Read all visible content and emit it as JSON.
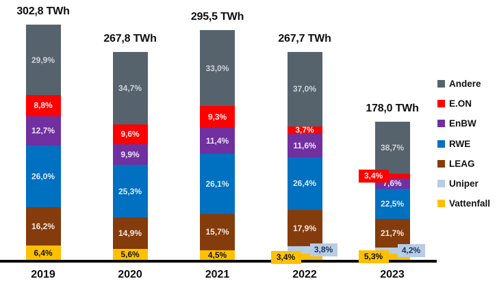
{
  "page": {
    "background": "#FFFFFF",
    "axis_color": "#000000"
  },
  "chart_data": {
    "type": "bar",
    "stacked": true,
    "unit": "TWh",
    "value_label_format": "percent-decimal-comma",
    "grid": false,
    "categories": [
      "2019",
      "2020",
      "2021",
      "2022",
      "2023"
    ],
    "totals": [
      {
        "label": "302,8 TWh",
        "value": 302.8
      },
      {
        "label": "267,8 TWh",
        "value": 267.8
      },
      {
        "label": "295,5 TWh",
        "value": 295.5
      },
      {
        "label": "267,7 TWh",
        "value": 267.7
      },
      {
        "label": "178,0 TWh",
        "value": 178.0
      }
    ],
    "series": [
      {
        "name": "Andere",
        "color": "#56636D",
        "label_color": "#CDD2D6",
        "values": [
          29.9,
          34.7,
          33.0,
          37.0,
          38.7
        ],
        "label_side": [
          "in",
          "in",
          "in",
          "in",
          "in"
        ]
      },
      {
        "name": "E.ON",
        "color": "#FE0000",
        "label_color": "#FBE9E7",
        "values": [
          8.8,
          9.6,
          9.3,
          3.7,
          3.4
        ],
        "label_side": [
          "in",
          "in",
          "in",
          "in",
          "left"
        ]
      },
      {
        "name": "EnBW",
        "color": "#7030A0",
        "label_color": "#EFE4F6",
        "values": [
          12.7,
          9.9,
          11.4,
          11.6,
          7.6
        ],
        "label_side": [
          "in",
          "in",
          "in",
          "in",
          "in"
        ]
      },
      {
        "name": "RWE",
        "color": "#0070C0",
        "label_color": "#DDEBF7",
        "values": [
          26.0,
          25.3,
          26.1,
          26.4,
          22.5
        ],
        "label_side": [
          "in",
          "in",
          "in",
          "in",
          "in"
        ]
      },
      {
        "name": "LEAG",
        "color": "#843C0C",
        "label_color": "#F5E8DE",
        "values": [
          16.2,
          14.9,
          15.7,
          17.9,
          21.7
        ],
        "label_side": [
          "in",
          "in",
          "in",
          "in",
          "in"
        ]
      },
      {
        "name": "Uniper",
        "color": "#B8CCE4",
        "label_color": "#17375E",
        "values": [
          null,
          null,
          null,
          3.8,
          4.2
        ],
        "label_side": [
          null,
          null,
          null,
          "right",
          "right"
        ]
      },
      {
        "name": "Vattenfall",
        "color": "#FFC000",
        "label_color": "#141414",
        "values": [
          6.4,
          5.6,
          4.5,
          3.4,
          5.3
        ],
        "label_side": [
          "in",
          "in",
          "in",
          "left",
          "left"
        ]
      }
    ],
    "legend": {
      "position": "right",
      "items": [
        "Andere",
        "E.ON",
        "EnBW",
        "RWE",
        "LEAG",
        "Uniper",
        "Vattenfall"
      ]
    },
    "ylim": [
      0,
      310
    ]
  }
}
